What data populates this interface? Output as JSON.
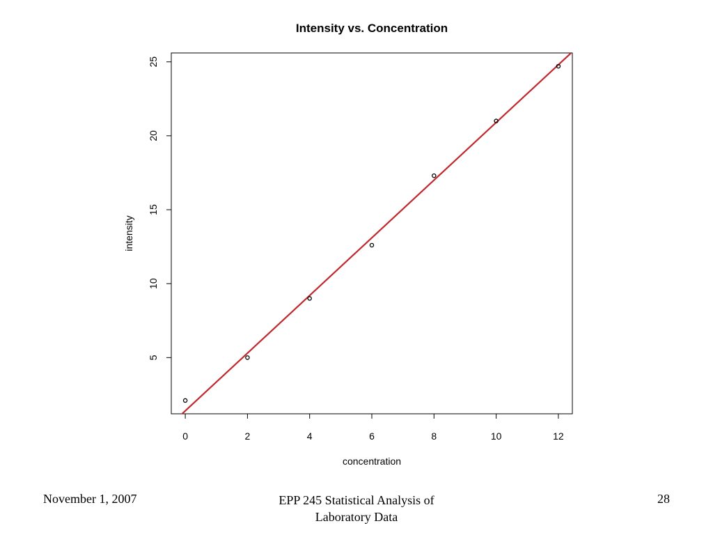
{
  "chart_data": {
    "type": "scatter",
    "title": "Intensity vs. Concentration",
    "xlabel": "concentration",
    "ylabel": "intensity",
    "xlim": [
      -0.45,
      12.45
    ],
    "ylim": [
      1.2,
      25.6
    ],
    "xticks": [
      0,
      2,
      4,
      6,
      8,
      10,
      12
    ],
    "yticks": [
      5,
      10,
      15,
      20,
      25
    ],
    "series": [
      {
        "x": [
          0,
          2,
          4,
          6,
          8,
          10,
          12
        ],
        "y": [
          2.1,
          5.0,
          9.0,
          12.6,
          17.3,
          21.0,
          24.7
        ]
      }
    ],
    "fit_line": {
      "intercept": 1.4,
      "slope": 1.95,
      "color": "#c0282d"
    },
    "point_color": "#000000",
    "grid": false
  },
  "footer": {
    "date": "November 1, 2007",
    "course_line1": "EPP 245 Statistical Analysis of",
    "course_line2": "Laboratory Data",
    "page": "28"
  }
}
